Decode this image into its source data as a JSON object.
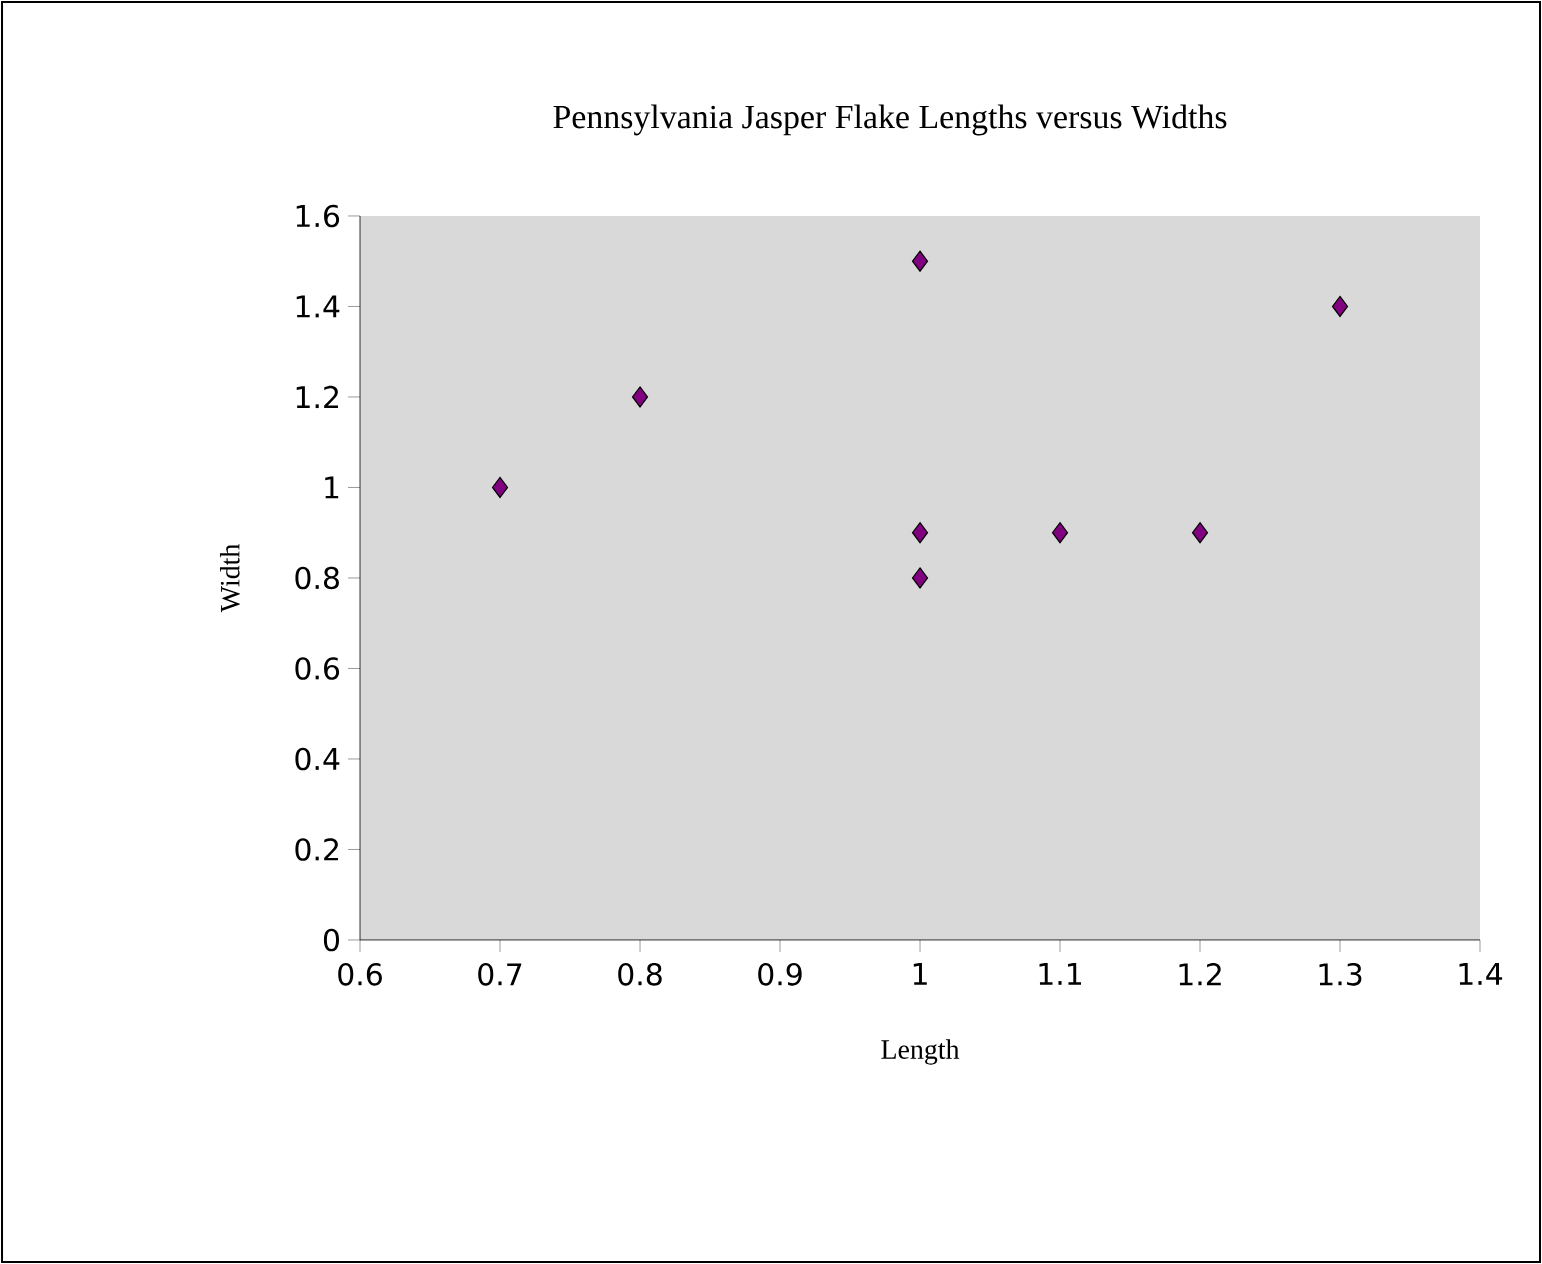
{
  "chart_data": {
    "type": "scatter",
    "title": "Pennsylvania Jasper Flake Lengths versus Widths",
    "xlabel": "Length",
    "ylabel": "Width",
    "x": [
      0.7,
      0.8,
      1.0,
      1.0,
      1.0,
      1.1,
      1.2,
      1.3
    ],
    "values": [
      1.0,
      1.2,
      1.5,
      0.9,
      0.8,
      0.9,
      0.9,
      1.4
    ],
    "color": "#800080",
    "marker": "diamond",
    "xlim": [
      0.6,
      1.4
    ],
    "xticks": [
      0.6,
      0.7,
      0.8,
      0.9,
      1,
      1.1,
      1.2,
      1.3,
      1.4
    ],
    "ylim": [
      0,
      1.6
    ],
    "yticks": [
      0,
      0.2,
      0.4,
      0.6,
      0.8,
      1,
      1.2,
      1.4,
      1.6
    ]
  }
}
